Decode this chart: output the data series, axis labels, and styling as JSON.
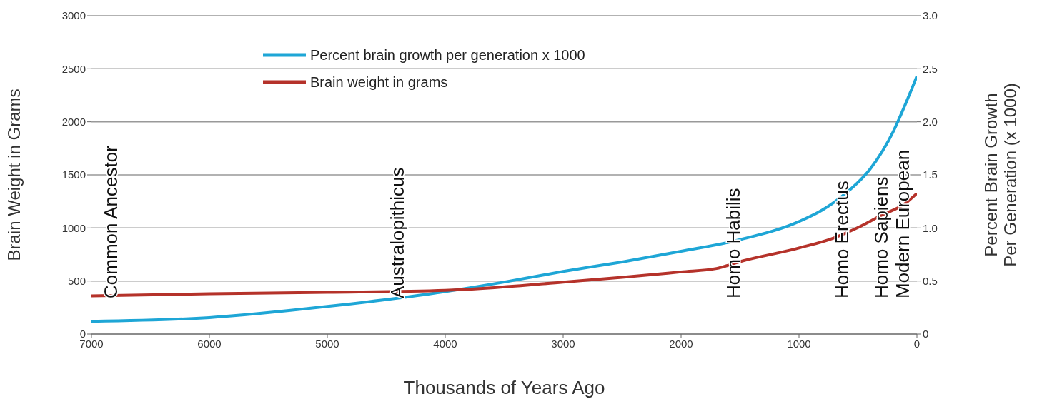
{
  "chart_data": {
    "type": "line",
    "xlabel": "Thousands of Years Ago",
    "ylabel": "Brain Weight in Grams",
    "y2label": "Percent Brain Growth\nPer Generation (x 1000)",
    "xlim": [
      7000,
      0
    ],
    "xticks": [
      7000,
      6000,
      5000,
      4000,
      3000,
      2000,
      1000,
      0
    ],
    "ylim": [
      0,
      3000
    ],
    "yticks": [
      0,
      500,
      1000,
      1500,
      2000,
      2500,
      3000
    ],
    "y2lim": [
      0,
      3
    ],
    "y2ticks": [
      0,
      0.5,
      {
        "value": 1,
        "label": "1.0"
      },
      1.5,
      {
        "value": 2,
        "label": "2.0"
      },
      2.5,
      {
        "value": 3,
        "label": "3.0"
      }
    ],
    "grid": "y",
    "legend": "top",
    "line_style": "solid",
    "marker": "none",
    "series": [
      {
        "name": "Percent brain growth per generation x 1000",
        "color": "#1ea6d6",
        "axis": "y2",
        "x": [
          7000,
          6000,
          5000,
          4000,
          3500,
          3000,
          2500,
          2000,
          1500,
          1000,
          800,
          600,
          400,
          200,
          100,
          0
        ],
        "values": [
          0.12,
          0.155,
          0.26,
          0.4,
          0.49,
          0.59,
          0.68,
          0.78,
          0.89,
          1.06,
          1.17,
          1.33,
          1.55,
          1.91,
          2.16,
          2.43
        ]
      },
      {
        "name": "Brain weight in grams",
        "color": "#b5322a",
        "axis": "y",
        "x": [
          7000,
          6000,
          5000,
          4000,
          3000,
          2500,
          2000,
          1700,
          1500,
          1000,
          700,
          500,
          300,
          100,
          0
        ],
        "values": [
          360,
          380,
          393,
          412,
          489,
          534,
          586,
          618,
          683,
          811,
          908,
          1004,
          1120,
          1230,
          1326
        ]
      }
    ],
    "annotations": [
      "Common Ancestor",
      "Australopithicus",
      "Homo Habilis",
      "Homo Erectus",
      "Homo Sapiens",
      "Modern European"
    ]
  }
}
